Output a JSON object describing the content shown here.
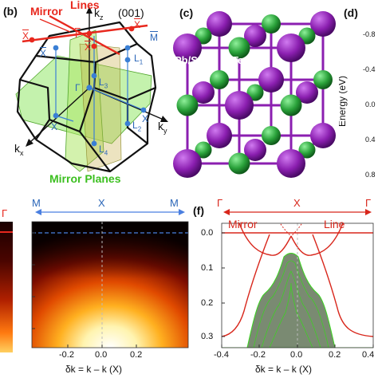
{
  "panel_b": {
    "tag": "(b)",
    "mirror_lines_1": "Mirror",
    "mirror_lines_2": "Lines",
    "surface": "(001)",
    "kz": "k",
    "kz_sub": "z",
    "ky": "k",
    "ky_sub": "y",
    "kx": "k",
    "kx_sub": "x",
    "mirror_planes": "Mirror Planes",
    "points": {
      "gamma_bar": "Γ",
      "x_bar_left": "X",
      "x_bar_top": "X",
      "x_bar_right": "X",
      "x_bar_mid": "X",
      "m_bar": "M",
      "l1": "L",
      "l1_sub": "1",
      "l2": "L",
      "l2_sub": "2",
      "l3": "L",
      "l3_sub": "3",
      "l4": "L",
      "l4_sub": "4",
      "gamma": "Γ",
      "x_left": "X",
      "x_right": "X",
      "x_top": "X"
    },
    "colors": {
      "mirror_line": "#e8281e",
      "mirror_plane": "#7de24a",
      "point": "#3a7fd5"
    }
  },
  "panel_c": {
    "tag": "(c)",
    "species_a": "Pb/Sn",
    "species_b": "Te",
    "colors": {
      "pb_sn": "#8b1fb0",
      "te": "#2aa23a"
    }
  },
  "panel_d": {
    "tag": "(d)",
    "ylabel": "Energy (eV)",
    "ticks": [
      "-0.8",
      "-0.4",
      "0.0",
      "0.4",
      "0.8"
    ]
  },
  "panel_e_left": {
    "gamma_bar": "Γ"
  },
  "panel_e": {
    "m_left": "M",
    "x_center": "X",
    "m_right": "M",
    "xticks": [
      "-0.2",
      "0.0",
      "0.2"
    ],
    "xlabel": "δk = k – k (X)"
  },
  "panel_f": {
    "tag": "(f)",
    "gamma_left": "Γ",
    "x_center": "X",
    "gamma_right": "Γ",
    "mirror_word": "Mirror",
    "line_word": "Line",
    "yticks": [
      "0.0",
      "0.1",
      "0.2",
      "0.3"
    ],
    "xticks": [
      "-0.4",
      "-0.2",
      "0.0",
      "0.2",
      "0.4"
    ],
    "xlabel": "δk = k – k (X)",
    "colors": {
      "line": "#d8261b",
      "bulk_fill": "#7a8a72",
      "bulk_edge": "#3ad61e"
    }
  }
}
